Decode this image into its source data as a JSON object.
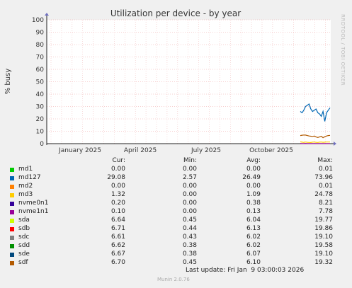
{
  "chart_data": {
    "type": "line",
    "title": "Utilization per device - by year",
    "ylabel": "% busy",
    "ylim": [
      0,
      100
    ],
    "yticks": [
      0,
      10,
      20,
      30,
      40,
      50,
      60,
      70,
      80,
      90,
      100
    ],
    "xtick_labels": [
      "January 2025",
      "April 2025",
      "July 2025",
      "October 2025"
    ],
    "grid": true,
    "series": [
      {
        "name": "md127",
        "color": "#0066b3",
        "values": [
          26,
          25,
          27,
          30,
          31,
          32,
          28,
          26,
          27,
          28,
          25,
          24,
          22,
          26,
          18,
          25,
          27,
          29
        ]
      },
      {
        "name": "sdf",
        "color": "#b35a00",
        "values": [
          6.5,
          6.8,
          7.0,
          6.9,
          6.5,
          6.2,
          6.0,
          5.8,
          6.1,
          5.5,
          5.0,
          5.5,
          6.0,
          4.8,
          5.6,
          6.2,
          6.5,
          6.7
        ]
      },
      {
        "name": "md3",
        "color": "#ffcc00",
        "values": [
          1.5,
          1.2,
          1.0,
          1.3,
          1.1,
          1.0,
          0.9,
          1.2,
          1.3,
          1.1,
          1.0,
          1.2,
          1.3,
          1.1,
          1.2,
          1.3,
          1.3,
          1.3
        ]
      },
      {
        "name": "nvme1n1",
        "color": "#990099",
        "values": [
          0.2,
          0.1,
          0.1,
          0.2,
          0.1,
          0.1,
          0.1,
          0.1,
          0.1,
          0.1,
          0.1,
          0.1,
          0.1,
          0.1,
          0.1,
          0.1,
          0.1,
          0.1
        ]
      }
    ]
  },
  "legend": {
    "headers": {
      "cur": "Cur:",
      "min": "Min:",
      "avg": "Avg:",
      "max": "Max:"
    },
    "rows": [
      {
        "name": "md1",
        "color": "#00cc00",
        "cur": "0.00",
        "min": "0.00",
        "avg": "0.00",
        "max": "0.01"
      },
      {
        "name": "md127",
        "color": "#0066b3",
        "cur": "29.08",
        "min": "2.57",
        "avg": "26.49",
        "max": "73.96"
      },
      {
        "name": "md2",
        "color": "#ff8000",
        "cur": "0.00",
        "min": "0.00",
        "avg": "0.00",
        "max": "0.01"
      },
      {
        "name": "md3",
        "color": "#ffcc00",
        "cur": "1.32",
        "min": "0.00",
        "avg": "1.09",
        "max": "24.78"
      },
      {
        "name": "nvme0n1",
        "color": "#330099",
        "cur": "0.20",
        "min": "0.00",
        "avg": "0.38",
        "max": "8.21"
      },
      {
        "name": "nvme1n1",
        "color": "#990099",
        "cur": "0.10",
        "min": "0.00",
        "avg": "0.13",
        "max": "7.78"
      },
      {
        "name": "sda",
        "color": "#ccff00",
        "cur": "6.64",
        "min": "0.45",
        "avg": "6.04",
        "max": "19.77"
      },
      {
        "name": "sdb",
        "color": "#ff0000",
        "cur": "6.71",
        "min": "0.44",
        "avg": "6.13",
        "max": "19.86"
      },
      {
        "name": "sdc",
        "color": "#808080",
        "cur": "6.61",
        "min": "0.43",
        "avg": "6.02",
        "max": "19.10"
      },
      {
        "name": "sdd",
        "color": "#008f00",
        "cur": "6.62",
        "min": "0.38",
        "avg": "6.02",
        "max": "19.58"
      },
      {
        "name": "sde",
        "color": "#00487d",
        "cur": "6.67",
        "min": "0.38",
        "avg": "6.07",
        "max": "19.10"
      },
      {
        "name": "sdf",
        "color": "#b35a00",
        "cur": "6.70",
        "min": "0.45",
        "avg": "6.10",
        "max": "19.32"
      }
    ]
  },
  "footer": {
    "last_update": "Last update: Fri Jan  9 03:00:03 2026",
    "munin": "Munin 2.0.76",
    "rrdtool": "RRDTOOL / TOBI OETIKER"
  }
}
